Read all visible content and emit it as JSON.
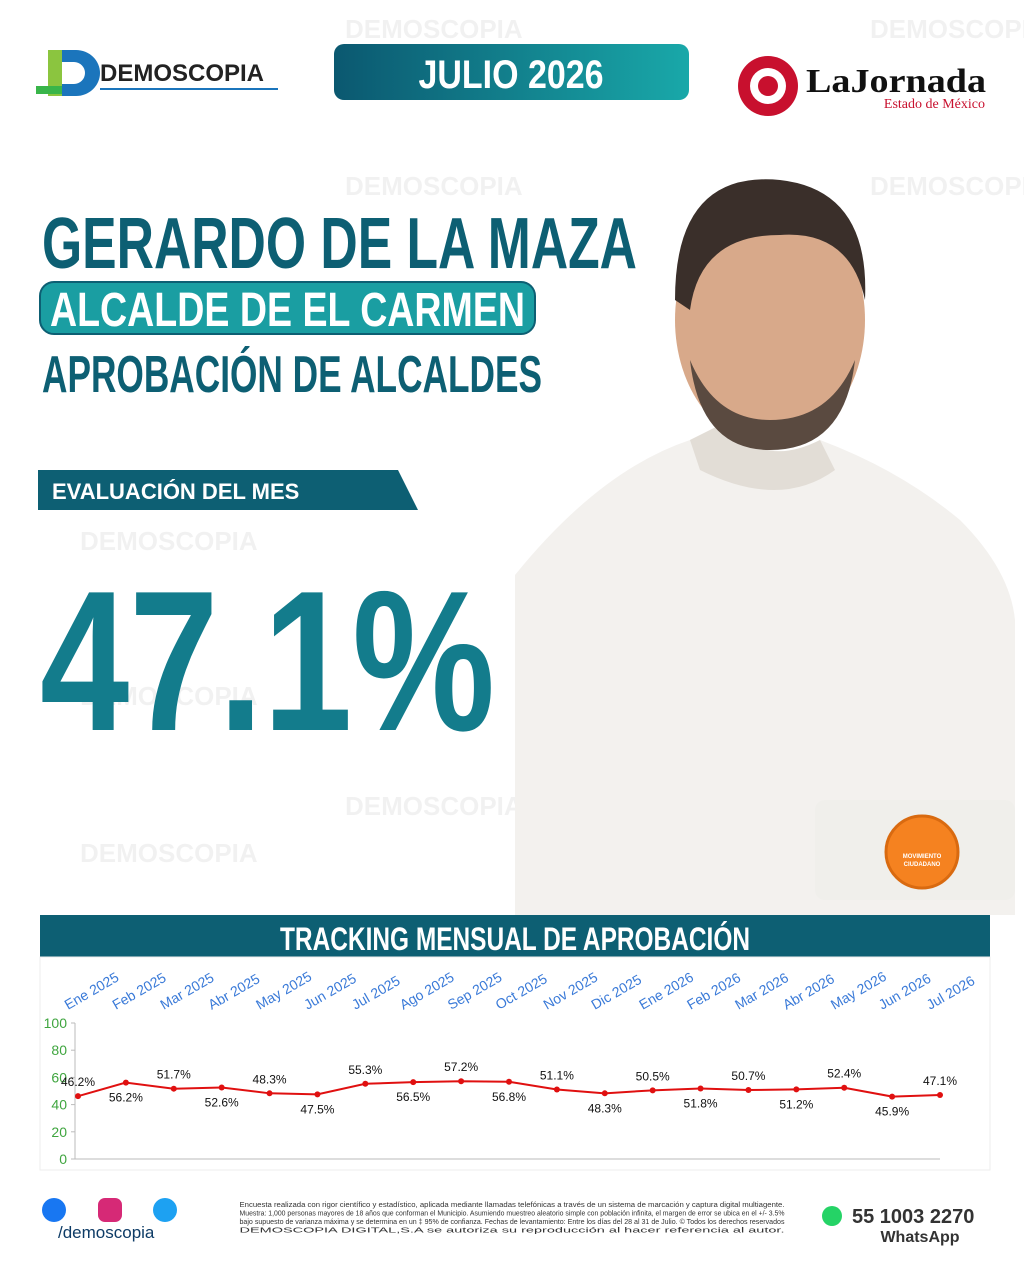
{
  "header": {
    "brand": "DEMOSCOPIA",
    "date": "JULIO 2026",
    "partner": "LaJornada",
    "partner_sub": "Estado de México"
  },
  "headline": {
    "name": "GERARDO DE LA MAZA",
    "position": "ALCALDE DE EL CARMEN",
    "topic": "APROBACIÓN DE ALCALDES"
  },
  "evaluation": {
    "label": "EVALUACIÓN DEL MES",
    "value": "47.1%"
  },
  "party": {
    "line1": "MOVIMIENTO",
    "line2": "CIUDADANO"
  },
  "chart_data": {
    "type": "line",
    "title": "TRACKING MENSUAL DE APROBACIÓN",
    "categories": [
      "Ene 2025",
      "Feb 2025",
      "Mar 2025",
      "Abr 2025",
      "May 2025",
      "Jun 2025",
      "Jul 2025",
      "Ago 2025",
      "Sep 2025",
      "Oct 2025",
      "Nov 2025",
      "Dic 2025",
      "Ene 2026",
      "Feb 2026",
      "Mar 2026",
      "Abr 2026",
      "May 2026",
      "Jun 2026",
      "Jul 2026"
    ],
    "values": [
      46.2,
      56.2,
      51.7,
      52.6,
      48.3,
      47.5,
      55.3,
      56.5,
      57.2,
      56.8,
      51.1,
      48.3,
      50.5,
      51.8,
      50.7,
      51.2,
      52.4,
      45.9,
      47.1
    ],
    "value_labels": [
      "46.2%",
      "56.2%",
      "51.7%",
      "52.6%",
      "48.3%",
      "47.5%",
      "55.3%",
      "56.5%",
      "57.2%",
      "56.8%",
      "51.1%",
      "48.3%",
      "50.5%",
      "51.8%",
      "50.7%",
      "51.2%",
      "52.4%",
      "45.9%",
      "47.1%"
    ],
    "color": "#e01010",
    "ylim": [
      0,
      100
    ],
    "yticks": [
      0,
      20,
      40,
      60,
      80,
      100
    ]
  },
  "footer": {
    "handle": "/demoscopia",
    "note": [
      "Encuesta realizada con rigor científico y estadístico, aplicada mediante llamadas telefónicas a través de un sistema de marcación y captura digital multiagente.",
      "Muestra: 1,000 personas mayores de 18 años que conforman el Municipio. Asumiendo muestreo aleatorio simple con población infinita, el margen de error se ubica en el +/- 3.5%",
      "bajo supuesto de varianza máxima y se determina en un ‡ 95% de confianza. Fechas de levantamiento: Entre los días del 28 al 31 de Julio. © Todos los derechos reservados",
      "DEMOSCOPIA DIGITAL,S.A se autoriza su reproducción al hacer referencia al autor."
    ],
    "phone": "55 1003 2270",
    "phone_label": "WhatsApp"
  }
}
